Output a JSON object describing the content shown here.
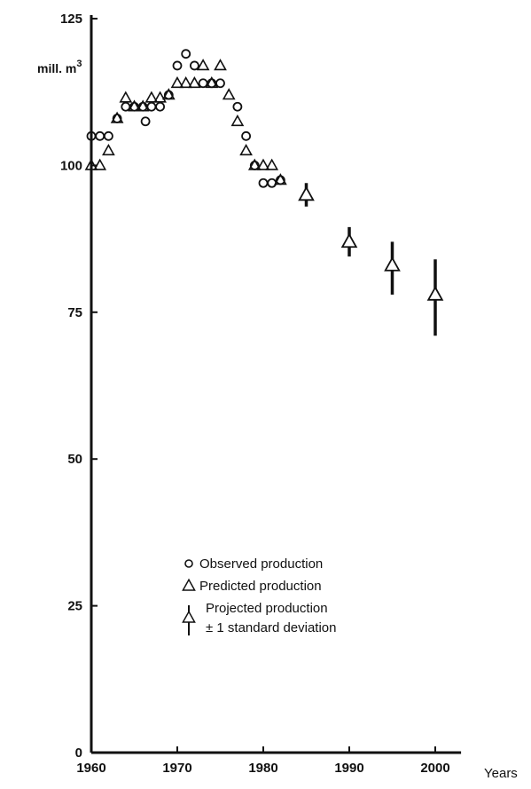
{
  "chart_data": {
    "type": "scatter",
    "title": "",
    "xlabel": "Years",
    "ylabel": "mill. m",
    "ylabel_superscript": "3",
    "xlim": [
      1960,
      2003
    ],
    "ylim": [
      0,
      125
    ],
    "x_ticks": [
      "1960",
      "1970",
      "1980",
      "1990",
      "2000"
    ],
    "y_ticks": [
      "0",
      "25",
      "50",
      "75",
      "100",
      "125"
    ],
    "grid": false,
    "legend_position": "center-bottom",
    "series": [
      {
        "name": "Observed production",
        "marker": "circle",
        "points": [
          {
            "x": 1960,
            "y": 105
          },
          {
            "x": 1961,
            "y": 105
          },
          {
            "x": 1962,
            "y": 105
          },
          {
            "x": 1963,
            "y": 108
          },
          {
            "x": 1964,
            "y": 110
          },
          {
            "x": 1965,
            "y": 110
          },
          {
            "x": 1966,
            "y": 110
          },
          {
            "x": 1966.3,
            "y": 107.5
          },
          {
            "x": 1967,
            "y": 110
          },
          {
            "x": 1968,
            "y": 110
          },
          {
            "x": 1969,
            "y": 112
          },
          {
            "x": 1970,
            "y": 117
          },
          {
            "x": 1971,
            "y": 119
          },
          {
            "x": 1972,
            "y": 117
          },
          {
            "x": 1973,
            "y": 114
          },
          {
            "x": 1974,
            "y": 114
          },
          {
            "x": 1975,
            "y": 114
          },
          {
            "x": 1977,
            "y": 110
          },
          {
            "x": 1978,
            "y": 105
          },
          {
            "x": 1979,
            "y": 100
          },
          {
            "x": 1980,
            "y": 97
          },
          {
            "x": 1981,
            "y": 97
          },
          {
            "x": 1982,
            "y": 97.5
          }
        ]
      },
      {
        "name": "Predicted production",
        "marker": "triangle",
        "points": [
          {
            "x": 1960,
            "y": 100
          },
          {
            "x": 1961,
            "y": 100
          },
          {
            "x": 1962,
            "y": 102.5
          },
          {
            "x": 1963,
            "y": 108
          },
          {
            "x": 1964,
            "y": 111.5
          },
          {
            "x": 1965,
            "y": 110
          },
          {
            "x": 1966,
            "y": 110
          },
          {
            "x": 1967,
            "y": 111.5
          },
          {
            "x": 1968,
            "y": 111.5
          },
          {
            "x": 1969,
            "y": 112
          },
          {
            "x": 1970,
            "y": 114
          },
          {
            "x": 1971,
            "y": 114
          },
          {
            "x": 1972,
            "y": 114
          },
          {
            "x": 1973,
            "y": 117
          },
          {
            "x": 1974,
            "y": 114
          },
          {
            "x": 1975,
            "y": 117
          },
          {
            "x": 1976,
            "y": 112
          },
          {
            "x": 1977,
            "y": 107.5
          },
          {
            "x": 1978,
            "y": 102.5
          },
          {
            "x": 1979,
            "y": 100
          },
          {
            "x": 1980,
            "y": 100
          },
          {
            "x": 1981,
            "y": 100
          },
          {
            "x": 1982,
            "y": 97.5
          }
        ]
      },
      {
        "name": "Projected production",
        "name_line2": "± 1 standard deviation",
        "marker": "triangle-errorbar",
        "points": [
          {
            "x": 1985,
            "y": 95,
            "low": 93,
            "high": 97
          },
          {
            "x": 1990,
            "y": 87,
            "low": 84.5,
            "high": 89.5
          },
          {
            "x": 1995,
            "y": 83,
            "low": 78,
            "high": 87
          },
          {
            "x": 2000,
            "y": 78,
            "low": 71,
            "high": 84
          }
        ]
      }
    ]
  }
}
